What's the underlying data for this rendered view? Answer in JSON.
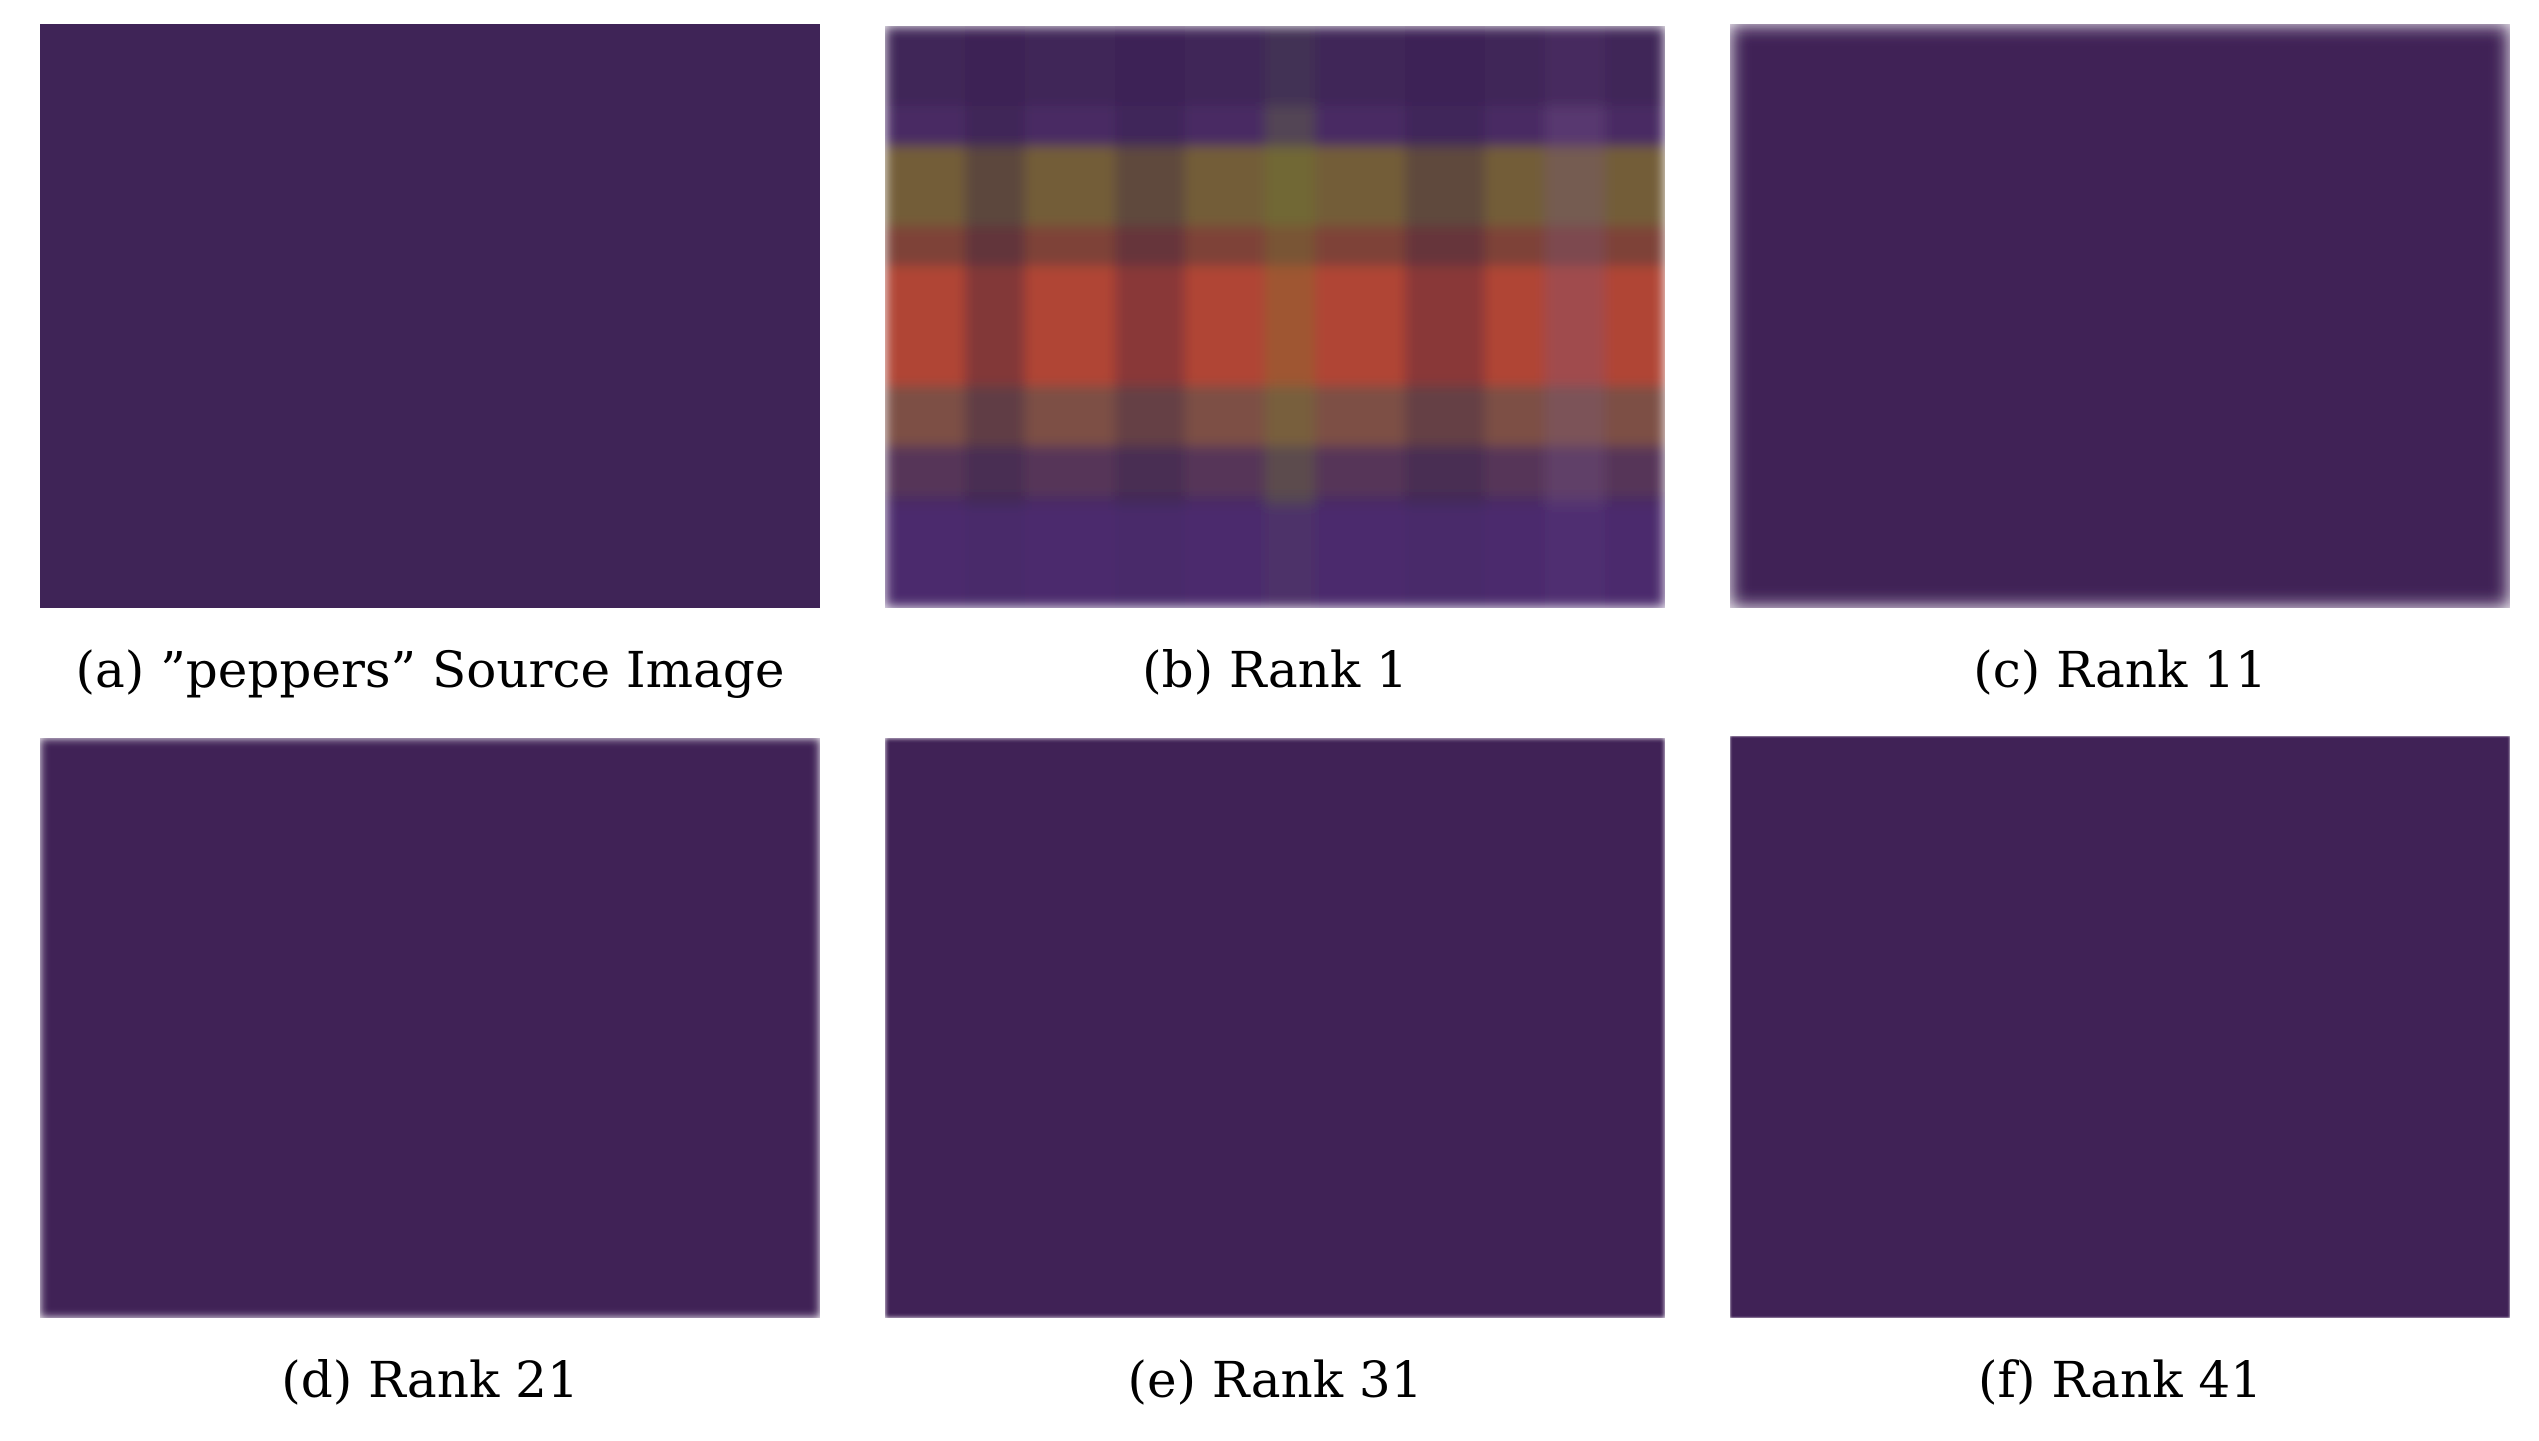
{
  "figure": {
    "panels": [
      {
        "id": "a",
        "caption": "(a) ”peppers” Source Image"
      },
      {
        "id": "b",
        "caption": "(b) Rank 1"
      },
      {
        "id": "c",
        "caption": "(c) Rank 11"
      },
      {
        "id": "d",
        "caption": "(d) Rank 21"
      },
      {
        "id": "e",
        "caption": "(e) Rank 31"
      },
      {
        "id": "f",
        "caption": "(f) Rank 41"
      }
    ]
  },
  "colors": {
    "backdrop": "#3f2457",
    "tablecloth": "#55307c",
    "red_pepper": "#c81d2b",
    "yellow_pepper": "#f2b400",
    "green_pepper": "#4f8a1e",
    "lime_pepper": "#84a81f",
    "orange_pepper": "#e0641a",
    "garlic": "#ecebe6"
  }
}
